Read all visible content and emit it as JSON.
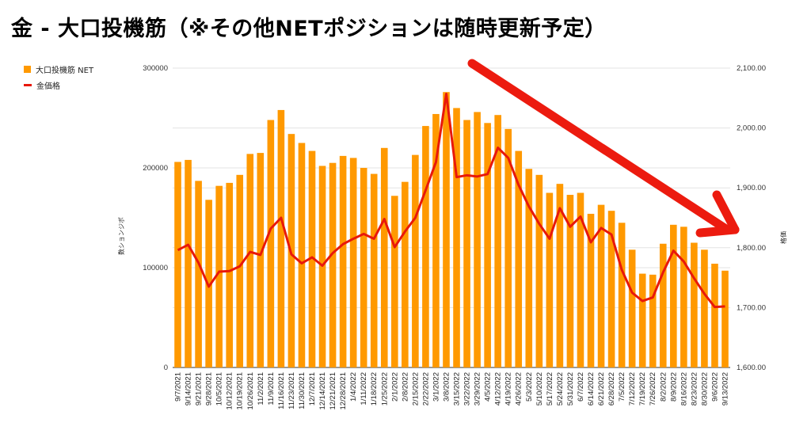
{
  "title": "金 - 大口投機筋（※その他NETポジションは随時更新予定）",
  "chart_data": {
    "type": "bar+line",
    "title": "金 - 大口投機筋（※その他NETポジションは随時更新予定）",
    "ylabel_left": "数ションジポ",
    "ylabel_right": "格価",
    "ylim_left": [
      0,
      300000
    ],
    "ylim_right": [
      1600,
      2100
    ],
    "left_ticks": [
      "0",
      "100000",
      "200000",
      "300000"
    ],
    "right_ticks": [
      "1,600.00",
      "1,700.00",
      "1,800.00",
      "1,900.00",
      "2,000.00",
      "2,100.00"
    ],
    "grid": true,
    "legend_position": "top-left",
    "categories": [
      "9/7/2021",
      "9/14/2021",
      "9/21/2021",
      "9/28/2021",
      "10/5/2021",
      "10/12/2021",
      "10/19/2021",
      "10/26/2021",
      "11/2/2021",
      "11/9/2021",
      "11/16/2021",
      "11/23/2021",
      "11/30/2021",
      "12/7/2021",
      "12/14/2021",
      "12/21/2021",
      "12/28/2021",
      "1/4/2022",
      "1/11/2022",
      "1/18/2022",
      "1/25/2022",
      "2/1/2022",
      "2/8/2022",
      "2/15/2022",
      "2/22/2022",
      "3/1/2022",
      "3/8/2022",
      "3/15/2022",
      "3/22/2022",
      "3/29/2022",
      "4/5/2022",
      "4/12/2022",
      "4/19/2022",
      "4/26/2022",
      "5/3/2022",
      "5/10/2022",
      "5/17/2022",
      "5/24/2022",
      "5/31/2022",
      "6/7/2022",
      "6/14/2022",
      "6/21/2022",
      "6/28/2022",
      "7/5/2022",
      "7/12/2022",
      "7/19/2022",
      "7/26/2022",
      "8/2/2022",
      "8/9/2022",
      "8/16/2022",
      "8/23/2022",
      "8/30/2022",
      "9/6/2022",
      "9/13/2022"
    ],
    "x_tick_labels": [
      "9/7/2021",
      "9/14/2021",
      "9/21/2021",
      "9/28/2021",
      "10/5/2021",
      "10/12/2021",
      "10/19/2021",
      "10/26/2021",
      "11/2/2021",
      "11/9/2021",
      "11/16/2021",
      "11/23/2021",
      "11/30/2021",
      "12/7/2021",
      "12/14/2021",
      "12/21/2021",
      "12/28/2021",
      "1/4/2022",
      "1/11/2022",
      "1/18/2022",
      "1/25/2022",
      "2/1/2022",
      "2/8/2022",
      "2/15/2022",
      "2/22/2022",
      "3/1/2022",
      "3/8/2022",
      "3/15/2022",
      "3/22/2022",
      "3/29/2022",
      "4/5/2022",
      "4/12/2022",
      "4/19/2022",
      "4/26/2022",
      "5/3/2022",
      "5/10/2022",
      "5/17/2022",
      "5/24/2022",
      "5/31/2022",
      "6/7/2022",
      "6/14/2022",
      "6/21/2022",
      "6/28/2022",
      "7/5/2022",
      "7/12/2022",
      "7/19/2022",
      "7/26/2022",
      "8/2/2022",
      "8/9/2022",
      "8/16/2022",
      "8/23/2022",
      "8/30/2022",
      "9/6/2022",
      "9/13/2022"
    ],
    "series": [
      {
        "name": "大口投機筋 NET",
        "type": "bar",
        "axis": "left",
        "color": "#ff9900",
        "values": [
          206000,
          208000,
          187000,
          168000,
          182000,
          185000,
          193000,
          214000,
          215000,
          248000,
          258000,
          234000,
          225000,
          217000,
          202000,
          205000,
          212000,
          210000,
          200000,
          194000,
          220000,
          172000,
          186000,
          213000,
          242000,
          254000,
          276000,
          260000,
          248000,
          256000,
          245000,
          253000,
          239000,
          217000,
          199000,
          193000,
          175000,
          184000,
          173000,
          175000,
          154000,
          163000,
          157000,
          145000,
          118000,
          94000,
          93000,
          124000,
          143000,
          141000,
          125000,
          118000,
          104000,
          97000
        ]
      },
      {
        "name": "金価格",
        "type": "line",
        "axis": "right",
        "color": "#e8180b",
        "values": [
          1796,
          1805,
          1775,
          1735,
          1760,
          1761,
          1769,
          1793,
          1788,
          1832,
          1850,
          1789,
          1774,
          1784,
          1770,
          1791,
          1806,
          1815,
          1823,
          1815,
          1848,
          1801,
          1827,
          1850,
          1896,
          1943,
          2057,
          1918,
          1921,
          1919,
          1923,
          1967,
          1950,
          1905,
          1869,
          1840,
          1815,
          1866,
          1835,
          1852,
          1809,
          1833,
          1822,
          1763,
          1725,
          1711,
          1717,
          1759,
          1795,
          1777,
          1749,
          1723,
          1701,
          1702
        ]
      }
    ],
    "annotations": [
      "red-arrow-downtrend"
    ]
  }
}
